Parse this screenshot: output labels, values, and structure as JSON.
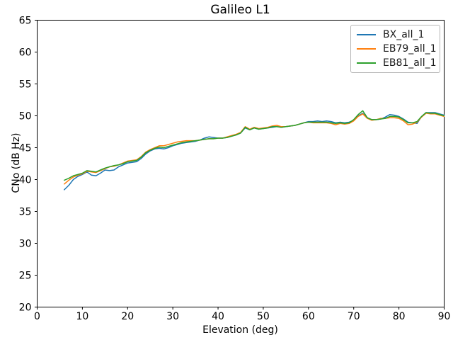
{
  "chart_data": {
    "type": "line",
    "title": "Galileo L1",
    "xlabel": "Elevation (deg)",
    "ylabel": "CNo (dB Hz)",
    "xlim": [
      0,
      90
    ],
    "ylim": [
      20,
      65
    ],
    "xticks": [
      0,
      10,
      20,
      30,
      40,
      50,
      60,
      70,
      80,
      90
    ],
    "yticks": [
      20,
      25,
      30,
      35,
      40,
      45,
      50,
      55,
      60,
      65
    ],
    "grid": false,
    "legend_position": "upper right",
    "axis_color": "#000000",
    "x": [
      6,
      7,
      8,
      9,
      10,
      11,
      12,
      13,
      14,
      15,
      16,
      17,
      18,
      19,
      20,
      21,
      22,
      23,
      24,
      25,
      26,
      27,
      28,
      29,
      30,
      31,
      32,
      33,
      34,
      35,
      36,
      37,
      38,
      39,
      40,
      41,
      42,
      43,
      44,
      45,
      46,
      47,
      48,
      49,
      50,
      51,
      52,
      53,
      54,
      55,
      56,
      57,
      58,
      59,
      60,
      61,
      62,
      63,
      64,
      65,
      66,
      67,
      68,
      69,
      70,
      71,
      72,
      73,
      74,
      75,
      76,
      77,
      78,
      79,
      80,
      81,
      82,
      83,
      84,
      85,
      86,
      87,
      88,
      89,
      90
    ],
    "series": [
      {
        "name": "BX_all_1",
        "color": "#1f77b4",
        "values": [
          38.4,
          39.1,
          40.0,
          40.5,
          40.8,
          41.2,
          40.7,
          40.6,
          41.0,
          41.5,
          41.4,
          41.5,
          42.0,
          42.3,
          42.6,
          42.7,
          42.8,
          43.3,
          44.0,
          44.5,
          44.8,
          44.9,
          44.8,
          45.0,
          45.3,
          45.5,
          45.7,
          45.8,
          45.9,
          46.0,
          46.2,
          46.5,
          46.7,
          46.6,
          46.5,
          46.5,
          46.6,
          46.8,
          47.0,
          47.3,
          48.1,
          47.8,
          48.1,
          47.9,
          48.0,
          48.1,
          48.2,
          48.3,
          48.2,
          48.3,
          48.4,
          48.5,
          48.7,
          48.9,
          49.1,
          49.1,
          49.2,
          49.1,
          49.2,
          49.1,
          48.9,
          49.0,
          48.9,
          49.0,
          49.3,
          50.0,
          50.4,
          49.7,
          49.4,
          49.4,
          49.5,
          49.8,
          50.2,
          50.1,
          49.9,
          49.5,
          49.0,
          48.9,
          48.8,
          49.9,
          50.5,
          50.5,
          50.5,
          50.3,
          50.1
        ]
      },
      {
        "name": "EB79_all_1",
        "color": "#ff7f0e",
        "values": [
          39.3,
          39.9,
          40.4,
          40.7,
          40.9,
          41.3,
          41.2,
          41.1,
          41.4,
          41.7,
          42.0,
          42.1,
          42.3,
          42.6,
          42.9,
          43.0,
          43.1,
          43.6,
          44.3,
          44.7,
          45.0,
          45.3,
          45.3,
          45.5,
          45.7,
          45.9,
          46.0,
          46.1,
          46.1,
          46.1,
          46.2,
          46.3,
          46.4,
          46.4,
          46.5,
          46.5,
          46.7,
          46.9,
          47.1,
          47.4,
          48.3,
          47.9,
          48.2,
          48.0,
          48.1,
          48.2,
          48.4,
          48.5,
          48.3,
          48.3,
          48.4,
          48.5,
          48.7,
          48.9,
          49.0,
          48.9,
          48.9,
          48.9,
          48.9,
          48.8,
          48.6,
          48.8,
          48.7,
          48.8,
          49.2,
          49.9,
          50.3,
          49.6,
          49.3,
          49.4,
          49.6,
          49.6,
          49.7,
          49.7,
          49.6,
          49.2,
          48.6,
          48.7,
          49.0,
          49.8,
          50.4,
          50.3,
          50.3,
          50.1,
          49.9
        ]
      },
      {
        "name": "EB81_all_1",
        "color": "#2ca02c",
        "values": [
          39.9,
          40.2,
          40.6,
          40.8,
          41.0,
          41.4,
          41.3,
          41.2,
          41.5,
          41.8,
          42.0,
          42.2,
          42.3,
          42.5,
          42.8,
          42.9,
          43.0,
          43.5,
          44.2,
          44.6,
          44.9,
          45.1,
          45.0,
          45.2,
          45.4,
          45.6,
          45.8,
          45.9,
          46.0,
          46.1,
          46.2,
          46.3,
          46.4,
          46.4,
          46.5,
          46.5,
          46.6,
          46.8,
          47.0,
          47.3,
          48.2,
          47.8,
          48.1,
          47.9,
          48.0,
          48.1,
          48.3,
          48.3,
          48.2,
          48.3,
          48.4,
          48.5,
          48.7,
          48.9,
          49.0,
          49.0,
          49.0,
          49.0,
          49.0,
          48.9,
          48.8,
          48.9,
          48.8,
          48.9,
          49.4,
          50.2,
          50.8,
          49.7,
          49.4,
          49.4,
          49.5,
          49.6,
          49.9,
          49.9,
          49.8,
          49.4,
          48.9,
          48.9,
          49.1,
          49.9,
          50.5,
          50.4,
          50.4,
          50.2,
          50.0
        ]
      }
    ]
  }
}
